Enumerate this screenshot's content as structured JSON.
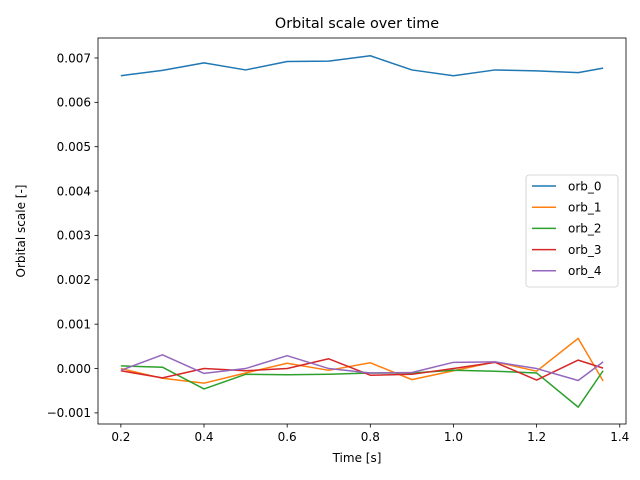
{
  "chart_data": {
    "type": "line",
    "title": "Orbital scale over time",
    "xlabel": "Time [s]",
    "ylabel": "Orbital scale [-]",
    "xlim": [
      0.145,
      1.415
    ],
    "ylim": [
      -0.00125,
      0.00745
    ],
    "xticks": [
      {
        "value": 0.2,
        "label": "0.2"
      },
      {
        "value": 0.4,
        "label": "0.4"
      },
      {
        "value": 0.6,
        "label": "0.6"
      },
      {
        "value": 0.8,
        "label": "0.8"
      },
      {
        "value": 1.0,
        "label": "1.0"
      },
      {
        "value": 1.2,
        "label": "1.2"
      },
      {
        "value": 1.4,
        "label": "1.4"
      }
    ],
    "yticks": [
      {
        "value": -0.001,
        "label": "−0.001"
      },
      {
        "value": 0.0,
        "label": "0.000"
      },
      {
        "value": 0.001,
        "label": "0.001"
      },
      {
        "value": 0.002,
        "label": "0.002"
      },
      {
        "value": 0.003,
        "label": "0.003"
      },
      {
        "value": 0.004,
        "label": "0.004"
      },
      {
        "value": 0.005,
        "label": "0.005"
      },
      {
        "value": 0.006,
        "label": "0.006"
      },
      {
        "value": 0.007,
        "label": "0.007"
      }
    ],
    "grid": false,
    "legend_position": "center-right",
    "x": [
      0.2,
      0.3,
      0.4,
      0.5,
      0.6,
      0.7,
      0.8,
      0.9,
      1.0,
      1.1,
      1.2,
      1.3,
      1.36
    ],
    "series": [
      {
        "name": "orb_0",
        "color": "#1f77b4",
        "values": [
          0.0066,
          0.00672,
          0.00689,
          0.00673,
          0.00692,
          0.00693,
          0.00705,
          0.00673,
          0.0066,
          0.00673,
          0.00671,
          0.00667,
          0.00677
        ]
      },
      {
        "name": "orb_1",
        "color": "#ff7f0e",
        "values": [
          0.0,
          -0.00022,
          -0.00033,
          -0.0001,
          0.00012,
          -4e-05,
          0.00013,
          -0.00025,
          -5e-05,
          0.00015,
          -6e-05,
          0.00068,
          -0.00028
        ]
      },
      {
        "name": "orb_2",
        "color": "#2ca02c",
        "values": [
          6e-05,
          3e-05,
          -0.00046,
          -0.00013,
          -0.00014,
          -0.00013,
          -0.0001,
          -0.0001,
          -4e-05,
          -6e-05,
          -0.0001,
          -0.00087,
          -5e-05
        ]
      },
      {
        "name": "orb_3",
        "color": "#d62728",
        "values": [
          -5e-05,
          -0.00021,
          0.0,
          -5e-05,
          0.0,
          0.00022,
          -0.00015,
          -0.00013,
          0.0,
          0.00014,
          -0.00026,
          0.00019,
          1e-05
        ]
      },
      {
        "name": "orb_4",
        "color": "#9467bd",
        "values": [
          -4e-05,
          0.00031,
          -0.00011,
          0.0,
          0.00029,
          0.0,
          -0.0001,
          -9e-05,
          0.00014,
          0.00015,
          0.0,
          -0.00027,
          0.00015
        ]
      }
    ]
  }
}
